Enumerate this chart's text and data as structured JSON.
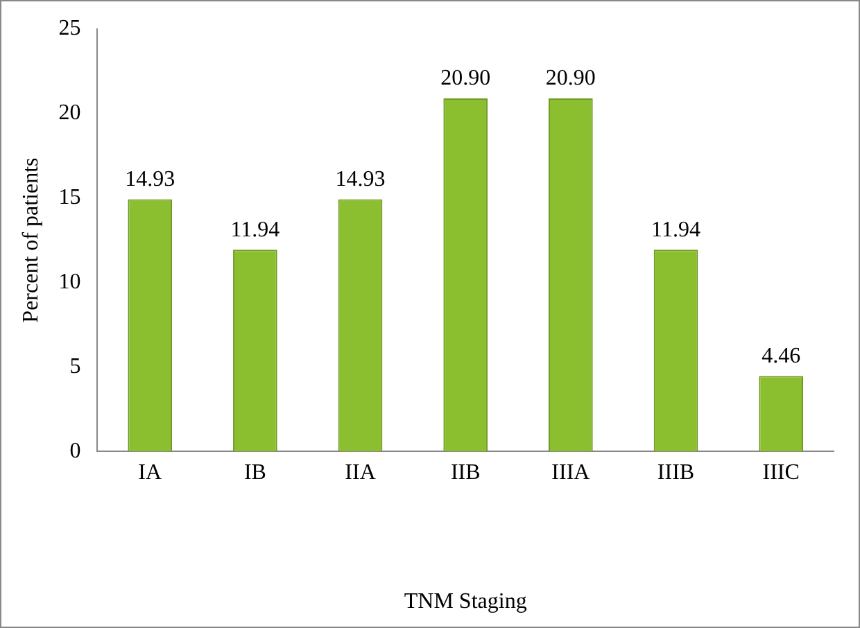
{
  "chart_data": {
    "type": "bar",
    "xlabel": "TNM Staging",
    "ylabel": "Percent of patients",
    "categories": [
      "IA",
      "IB",
      "IIA",
      "IIB",
      "IIIA",
      "IIIB",
      "IIIC"
    ],
    "values": [
      14.93,
      11.94,
      14.93,
      20.9,
      20.9,
      11.94,
      4.46
    ],
    "value_labels": [
      "14.93",
      "11.94",
      "14.93",
      "20.90",
      "20.90",
      "11.94",
      "4.46"
    ],
    "color": "#8cbf2f",
    "ylim": [
      0,
      25
    ],
    "yticks": [
      0,
      5,
      10,
      15,
      20,
      25
    ],
    "grid": false,
    "legend": false
  }
}
